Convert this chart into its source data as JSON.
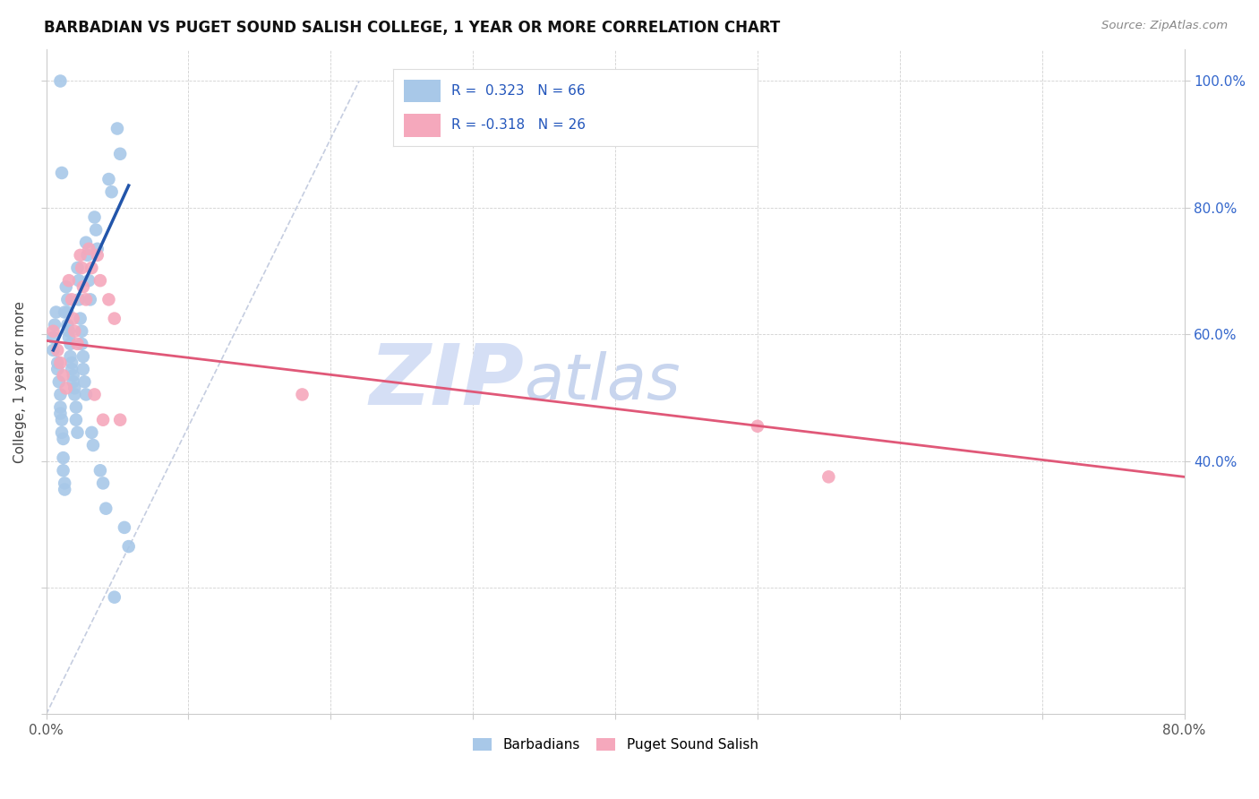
{
  "title": "BARBADIAN VS PUGET SOUND SALISH COLLEGE, 1 YEAR OR MORE CORRELATION CHART",
  "source": "Source: ZipAtlas.com",
  "ylabel": "College, 1 year or more",
  "xlim": [
    0.0,
    0.8
  ],
  "ylim": [
    0.0,
    1.05
  ],
  "xtick_vals": [
    0.0,
    0.1,
    0.2,
    0.3,
    0.4,
    0.5,
    0.6,
    0.7,
    0.8
  ],
  "xtick_labels_show": {
    "0.0": "0.0%",
    "0.8": "80.0%"
  },
  "ytick_right_vals": [
    0.4,
    0.6,
    0.8,
    1.0
  ],
  "ytick_right_labels": [
    "40.0%",
    "60.0%",
    "80.0%",
    "100.0%"
  ],
  "blue_R": 0.323,
  "blue_N": 66,
  "pink_R": -0.318,
  "pink_N": 26,
  "blue_scatter_x": [
    0.005,
    0.005,
    0.006,
    0.007,
    0.008,
    0.008,
    0.009,
    0.01,
    0.01,
    0.01,
    0.011,
    0.011,
    0.012,
    0.012,
    0.012,
    0.013,
    0.013,
    0.014,
    0.015,
    0.015,
    0.015,
    0.016,
    0.016,
    0.017,
    0.017,
    0.018,
    0.018,
    0.019,
    0.019,
    0.02,
    0.02,
    0.021,
    0.021,
    0.022,
    0.022,
    0.023,
    0.023,
    0.024,
    0.025,
    0.025,
    0.026,
    0.026,
    0.027,
    0.028,
    0.028,
    0.029,
    0.03,
    0.031,
    0.032,
    0.033,
    0.034,
    0.035,
    0.036,
    0.038,
    0.04,
    0.042,
    0.044,
    0.046,
    0.048,
    0.05,
    0.052,
    0.055,
    0.058,
    0.01,
    0.011,
    0.013
  ],
  "blue_scatter_y": [
    0.575,
    0.595,
    0.615,
    0.635,
    0.555,
    0.545,
    0.525,
    0.505,
    0.485,
    0.475,
    0.465,
    0.445,
    0.435,
    0.405,
    0.385,
    0.365,
    0.355,
    0.675,
    0.655,
    0.635,
    0.615,
    0.605,
    0.595,
    0.585,
    0.565,
    0.555,
    0.545,
    0.535,
    0.525,
    0.515,
    0.505,
    0.485,
    0.465,
    0.445,
    0.705,
    0.685,
    0.655,
    0.625,
    0.605,
    0.585,
    0.565,
    0.545,
    0.525,
    0.505,
    0.745,
    0.725,
    0.685,
    0.655,
    0.445,
    0.425,
    0.785,
    0.765,
    0.735,
    0.385,
    0.365,
    0.325,
    0.845,
    0.825,
    0.185,
    0.925,
    0.885,
    0.295,
    0.265,
    1.0,
    0.855,
    0.635
  ],
  "pink_scatter_x": [
    0.005,
    0.008,
    0.01,
    0.012,
    0.014,
    0.016,
    0.018,
    0.019,
    0.02,
    0.022,
    0.024,
    0.025,
    0.026,
    0.028,
    0.03,
    0.032,
    0.034,
    0.036,
    0.038,
    0.04,
    0.044,
    0.048,
    0.052,
    0.5,
    0.55,
    0.18
  ],
  "pink_scatter_y": [
    0.605,
    0.575,
    0.555,
    0.535,
    0.515,
    0.685,
    0.655,
    0.625,
    0.605,
    0.585,
    0.725,
    0.705,
    0.675,
    0.655,
    0.735,
    0.705,
    0.505,
    0.725,
    0.685,
    0.465,
    0.655,
    0.625,
    0.465,
    0.455,
    0.375,
    0.505
  ],
  "blue_line_x": [
    0.005,
    0.058
  ],
  "blue_line_y": [
    0.575,
    0.835
  ],
  "pink_line_x": [
    0.0,
    0.8
  ],
  "pink_line_y": [
    0.59,
    0.375
  ],
  "diag_line_x": [
    0.0,
    0.22
  ],
  "diag_line_y": [
    0.0,
    1.0
  ],
  "scatter_color_blue": "#a8c8e8",
  "scatter_color_pink": "#f5a8bc",
  "line_color_blue": "#2255aa",
  "line_color_pink": "#e05878",
  "diag_color": "#c5cde0",
  "bg_color": "#ffffff",
  "watermark_zip": "ZIP",
  "watermark_atlas": "atlas",
  "watermark_color_zip": "#d5dff5",
  "watermark_color_atlas": "#c8d5ee",
  "right_axis_color": "#3366cc",
  "legend_text_color": "#2255bb"
}
